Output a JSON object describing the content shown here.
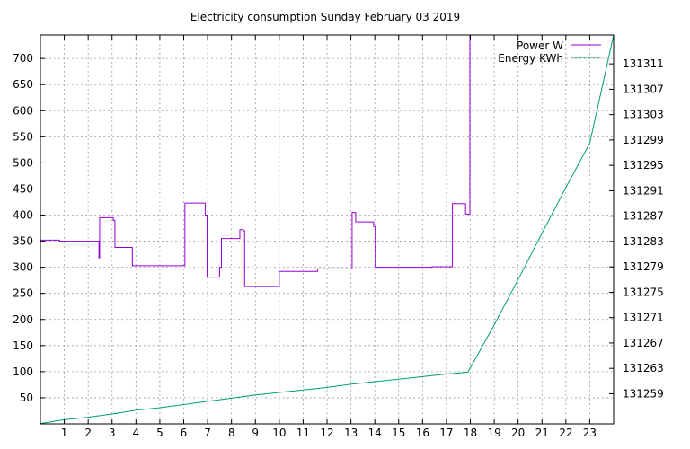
{
  "chart_data": {
    "type": "line",
    "title": "Electricity consumption Sunday February 03 2019",
    "xlabel": "",
    "ylabel": "",
    "xlim": [
      0,
      24
    ],
    "ylim": [
      0,
      745
    ],
    "y2lim": [
      131254.25,
      131315.55
    ],
    "x_ticks": [
      1,
      2,
      3,
      4,
      5,
      6,
      7,
      8,
      9,
      10,
      11,
      12,
      13,
      14,
      15,
      16,
      17,
      18,
      19,
      20,
      21,
      22,
      23
    ],
    "y_ticks": [
      50,
      100,
      150,
      200,
      250,
      300,
      350,
      400,
      450,
      500,
      550,
      600,
      650,
      700
    ],
    "y2_ticks": [
      131259,
      131263,
      131267,
      131271,
      131275,
      131279,
      131283,
      131287,
      131291,
      131295,
      131299,
      131303,
      131307,
      131311
    ],
    "grid": true,
    "legend_position": "top-right",
    "series": [
      {
        "name": "Power W",
        "axis": "left",
        "color": "#9400d3",
        "points": [
          [
            0,
            352
          ],
          [
            0.8,
            352
          ],
          [
            0.8,
            350
          ],
          [
            2.45,
            350
          ],
          [
            2.45,
            318
          ],
          [
            2.48,
            318
          ],
          [
            2.48,
            395
          ],
          [
            3.05,
            395
          ],
          [
            3.05,
            390
          ],
          [
            3.12,
            390
          ],
          [
            3.12,
            338
          ],
          [
            3.85,
            338
          ],
          [
            3.85,
            303
          ],
          [
            6.05,
            303
          ],
          [
            6.05,
            423
          ],
          [
            6.9,
            423
          ],
          [
            6.9,
            400
          ],
          [
            6.98,
            400
          ],
          [
            6.98,
            281
          ],
          [
            7.5,
            281
          ],
          [
            7.5,
            300
          ],
          [
            7.58,
            300
          ],
          [
            7.58,
            355
          ],
          [
            8.35,
            355
          ],
          [
            8.35,
            372
          ],
          [
            8.5,
            372
          ],
          [
            8.5,
            370
          ],
          [
            8.55,
            370
          ],
          [
            8.55,
            263
          ],
          [
            10.0,
            263
          ],
          [
            10.0,
            292
          ],
          [
            11.6,
            292
          ],
          [
            11.6,
            297
          ],
          [
            13.05,
            297
          ],
          [
            13.05,
            405
          ],
          [
            13.2,
            405
          ],
          [
            13.2,
            387
          ],
          [
            13.95,
            387
          ],
          [
            13.95,
            378
          ],
          [
            14.02,
            378
          ],
          [
            14.02,
            300
          ],
          [
            16.4,
            300
          ],
          [
            16.4,
            301
          ],
          [
            17.25,
            301
          ],
          [
            17.25,
            422
          ],
          [
            17.8,
            422
          ],
          [
            17.8,
            402
          ],
          [
            17.98,
            402
          ],
          [
            17.98,
            745
          ]
        ]
      },
      {
        "name": "Energy KWh",
        "axis": "right",
        "color": "#009e73",
        "points": [
          [
            0,
            131254.3
          ],
          [
            1,
            131254.9
          ],
          [
            2,
            131255.3
          ],
          [
            3,
            131255.8
          ],
          [
            4,
            131256.4
          ],
          [
            5,
            131256.8
          ],
          [
            6,
            131257.3
          ],
          [
            7,
            131257.8
          ],
          [
            8,
            131258.3
          ],
          [
            9,
            131258.8
          ],
          [
            10,
            131259.2
          ],
          [
            11,
            131259.6
          ],
          [
            12,
            131260.0
          ],
          [
            13,
            131260.5
          ],
          [
            14,
            131260.9
          ],
          [
            15,
            131261.3
          ],
          [
            16,
            131261.7
          ],
          [
            17,
            131262.1
          ],
          [
            17.9,
            131262.4
          ],
          [
            18.95,
            131269.5
          ],
          [
            20,
            131277.0
          ],
          [
            21,
            131284.3
          ],
          [
            22,
            131291.5
          ],
          [
            23,
            131298.5
          ],
          [
            24,
            131315.6
          ]
        ]
      }
    ]
  }
}
